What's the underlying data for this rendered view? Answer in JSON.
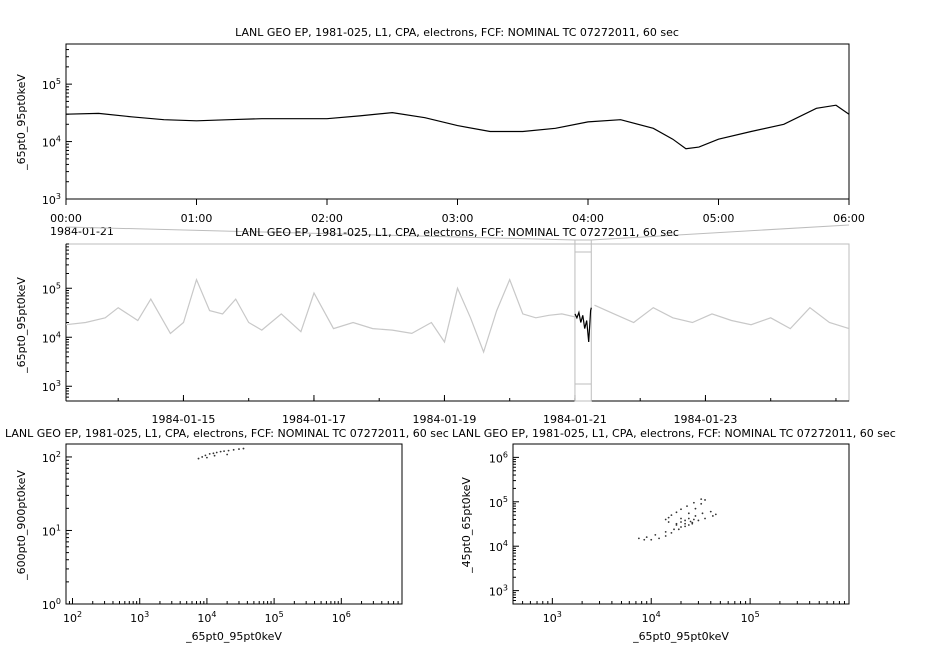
{
  "chart_data": [
    {
      "type": "line",
      "title": "LANL GEO EP, 1981-025, L1, CPA, electrons, FCF: NOMINAL TC 07272011, 60 sec",
      "ylabel": "_65pt0_95pt0keV",
      "y_scale": "log",
      "ylim": [
        1000,
        500000
      ],
      "y_ticks": [
        {
          "exp": "3",
          "value": 1000
        },
        {
          "exp": "4",
          "value": 10000
        },
        {
          "exp": "5",
          "value": 100000
        }
      ],
      "x_ticks": [
        "00:00",
        "01:00",
        "02:00",
        "03:00",
        "04:00",
        "05:00",
        "06:00"
      ],
      "x_date_label": "1984-01-21",
      "xlim_hours": [
        0,
        6
      ],
      "series": [
        {
          "color": "#000000",
          "x": [
            0,
            0.25,
            0.5,
            0.75,
            1.0,
            1.25,
            1.5,
            1.75,
            2.0,
            2.25,
            2.5,
            2.75,
            3.0,
            3.25,
            3.5,
            3.75,
            4.0,
            4.25,
            4.5,
            4.65,
            4.75,
            4.85,
            5.0,
            5.25,
            5.5,
            5.75,
            5.9,
            6.0
          ],
          "y": [
            30000,
            31000,
            27000,
            24000,
            23000,
            24000,
            25000,
            25000,
            25000,
            28000,
            32000,
            26000,
            19000,
            15000,
            15000,
            17000,
            22000,
            24000,
            17000,
            11000,
            7500,
            8000,
            11000,
            15000,
            20000,
            38000,
            43000,
            30000
          ]
        }
      ]
    },
    {
      "type": "line",
      "title": "LANL GEO EP, 1981-025, L1, CPA, electrons, FCF: NOMINAL TC 07272011, 60 sec",
      "ylabel": "_65pt0_95pt0keV",
      "y_scale": "log",
      "ylim": [
        500,
        800000
      ],
      "y_ticks": [
        {
          "exp": "3",
          "value": 1000
        },
        {
          "exp": "4",
          "value": 10000
        },
        {
          "exp": "5",
          "value": 100000
        }
      ],
      "x_ticks": [
        "1984-01-15",
        "1984-01-17",
        "1984-01-19",
        "1984-01-21",
        "1984-01-23"
      ],
      "x_tick_days": [
        15,
        17,
        19,
        21,
        23
      ],
      "xlim_days": [
        13.2,
        25.2
      ],
      "highlight_days": [
        21.0,
        21.25
      ],
      "series": [
        {
          "name": "context",
          "color": "#c8c8c8",
          "x": [
            13.2,
            13.5,
            13.8,
            14.0,
            14.3,
            14.5,
            14.8,
            15.0,
            15.2,
            15.4,
            15.6,
            15.8,
            16.0,
            16.2,
            16.5,
            16.8,
            17.0,
            17.3,
            17.6,
            17.9,
            18.2,
            18.5,
            18.8,
            19.0,
            19.2,
            19.4,
            19.6,
            19.8,
            20.0,
            20.2,
            20.4,
            20.6,
            20.8,
            21.0
          ],
          "y": [
            18000,
            20000,
            25000,
            40000,
            22000,
            60000,
            12000,
            20000,
            150000,
            35000,
            30000,
            60000,
            20000,
            14000,
            30000,
            13000,
            80000,
            15000,
            20000,
            15000,
            14000,
            12000,
            20000,
            8000,
            100000,
            25000,
            5000,
            35000,
            150000,
            30000,
            25000,
            28000,
            30000,
            26000
          ]
        },
        {
          "name": "context-after",
          "color": "#c8c8c8",
          "x": [
            21.3,
            21.6,
            21.9,
            22.2,
            22.5,
            22.8,
            23.1,
            23.4,
            23.7,
            24.0,
            24.3,
            24.6,
            24.9,
            25.2
          ],
          "y": [
            45000,
            30000,
            20000,
            40000,
            25000,
            20000,
            30000,
            22000,
            18000,
            25000,
            15000,
            40000,
            20000,
            15000
          ]
        },
        {
          "name": "selected",
          "color": "#000000",
          "x": [
            21.0,
            21.03,
            21.06,
            21.09,
            21.12,
            21.15,
            21.18,
            21.21,
            21.24,
            21.25
          ],
          "y": [
            30000,
            25000,
            32000,
            20000,
            28000,
            15000,
            22000,
            8000,
            35000,
            40000
          ]
        }
      ]
    },
    {
      "type": "scatter",
      "title": "LANL GEO EP, 1981-025, L1, CPA, electrons, FCF: NOMINAL TC 07272011, 60 sec",
      "xlabel": "_65pt0_95pt0keV",
      "ylabel": "_600pt0_900pt0keV",
      "x_scale": "log",
      "y_scale": "log",
      "xlim": [
        80,
        8000000
      ],
      "ylim": [
        1,
        150
      ],
      "x_ticks": [
        {
          "exp": "2",
          "value": 100
        },
        {
          "exp": "3",
          "value": 1000
        },
        {
          "exp": "4",
          "value": 10000
        },
        {
          "exp": "5",
          "value": 100000
        },
        {
          "exp": "6",
          "value": 1000000
        }
      ],
      "y_ticks": [
        {
          "exp": "0",
          "value": 1
        },
        {
          "exp": "1",
          "value": 10
        },
        {
          "exp": "2",
          "value": 100
        }
      ],
      "points": [
        [
          7500,
          95
        ],
        [
          8500,
          100
        ],
        [
          9500,
          105
        ],
        [
          11000,
          110
        ],
        [
          12500,
          112
        ],
        [
          14000,
          115
        ],
        [
          16000,
          118
        ],
        [
          18000,
          120
        ],
        [
          21000,
          122
        ],
        [
          25000,
          125
        ],
        [
          30000,
          128
        ],
        [
          35000,
          130
        ],
        [
          10000,
          98
        ],
        [
          13000,
          104
        ],
        [
          20000,
          108
        ]
      ]
    },
    {
      "type": "scatter",
      "title": "LANL GEO EP, 1981-025, L1, CPA, electrons, FCF: NOMINAL TC 07272011, 60 sec",
      "xlabel": "_65pt0_95pt0keV",
      "ylabel": "_45pt0_65pt0keV",
      "x_scale": "log",
      "y_scale": "log",
      "xlim": [
        400,
        1000000
      ],
      "ylim": [
        500,
        2000000
      ],
      "x_ticks": [
        {
          "exp": "3",
          "value": 1000
        },
        {
          "exp": "4",
          "value": 10000
        },
        {
          "exp": "5",
          "value": 100000
        }
      ],
      "y_ticks": [
        {
          "exp": "3",
          "value": 1000
        },
        {
          "exp": "4",
          "value": 10000
        },
        {
          "exp": "5",
          "value": 100000
        },
        {
          "exp": "6",
          "value": 1000000
        }
      ],
      "points": [
        [
          7500,
          15000
        ],
        [
          8500,
          14000
        ],
        [
          10000,
          14000
        ],
        [
          12000,
          15000
        ],
        [
          14000,
          17000
        ],
        [
          16000,
          20000
        ],
        [
          19000,
          24000
        ],
        [
          22000,
          28000
        ],
        [
          26000,
          32000
        ],
        [
          30000,
          38000
        ],
        [
          35000,
          42000
        ],
        [
          42000,
          48000
        ],
        [
          45000,
          52000
        ],
        [
          40000,
          60000
        ],
        [
          33000,
          55000
        ],
        [
          28000,
          48000
        ],
        [
          24000,
          42000
        ],
        [
          22000,
          38000
        ],
        [
          20000,
          35000
        ],
        [
          18000,
          32000
        ],
        [
          20000,
          42000
        ],
        [
          24000,
          55000
        ],
        [
          28000,
          70000
        ],
        [
          32000,
          90000
        ],
        [
          35000,
          110000
        ],
        [
          32000,
          115000
        ],
        [
          27000,
          95000
        ],
        [
          23000,
          80000
        ],
        [
          20000,
          68000
        ],
        [
          18000,
          58000
        ],
        [
          16000,
          50000
        ],
        [
          15000,
          44000
        ],
        [
          14000,
          40000
        ],
        [
          15000,
          35000
        ],
        [
          18000,
          30000
        ],
        [
          22000,
          32000
        ],
        [
          25000,
          36000
        ],
        [
          27000,
          40000
        ],
        [
          26000,
          34000
        ],
        [
          24000,
          30000
        ],
        [
          20000,
          27000
        ],
        [
          17000,
          24000
        ],
        [
          14000,
          21000
        ],
        [
          11000,
          18000
        ],
        [
          9000,
          16000
        ]
      ]
    }
  ]
}
